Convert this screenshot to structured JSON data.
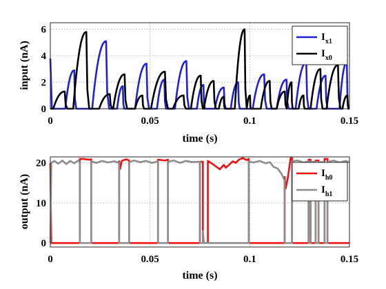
{
  "chart_data": [
    {
      "type": "line",
      "xlabel": "time (s)",
      "ylabel": "input (nA)",
      "xlim": [
        0,
        0.15
      ],
      "ylim": [
        0,
        6.5
      ],
      "xticks": [
        0,
        0.05,
        0.1,
        0.15
      ],
      "xtick_labels": [
        "0",
        "0.05",
        "0.1",
        "0.15"
      ],
      "yticks": [
        0,
        2,
        4,
        6
      ],
      "ytick_labels": [
        "0",
        "2",
        "4",
        "6"
      ],
      "grid": true,
      "legend_position": "top-right",
      "series": [
        {
          "name": "I",
          "sub": "x1",
          "color": "#1f1fd6",
          "pulses": [
            {
              "start": 0.0,
              "end": 0.0008,
              "peak": 3.8
            },
            {
              "start": 0.0075,
              "end": 0.013,
              "peak": 2.9
            },
            {
              "start": 0.021,
              "end": 0.0295,
              "peak": 5.1
            },
            {
              "start": 0.0335,
              "end": 0.037,
              "peak": 1.7
            },
            {
              "start": 0.0425,
              "end": 0.0495,
              "peak": 3.4
            },
            {
              "start": 0.0535,
              "end": 0.058,
              "peak": 2.2
            },
            {
              "start": 0.0625,
              "end": 0.0695,
              "peak": 3.6
            },
            {
              "start": 0.0735,
              "end": 0.0775,
              "peak": 1.8
            },
            {
              "start": 0.0825,
              "end": 0.088,
              "peak": 1.6
            },
            {
              "start": 0.0905,
              "end": 0.095,
              "peak": 2.0
            },
            {
              "start": 0.1015,
              "end": 0.1085,
              "peak": 2.6
            },
            {
              "start": 0.1135,
              "end": 0.1195,
              "peak": 2.2
            },
            {
              "start": 0.123,
              "end": 0.1295,
              "peak": 3.5
            },
            {
              "start": 0.1335,
              "end": 0.139,
              "peak": 2.5
            },
            {
              "start": 0.145,
              "end": 0.1495,
              "peak": 3.5
            }
          ]
        },
        {
          "name": "I",
          "sub": "x0",
          "color": "#000000",
          "pulses": [
            {
              "start": 0.0015,
              "end": 0.0085,
              "peak": 1.3
            },
            {
              "start": 0.0115,
              "end": 0.0195,
              "peak": 5.8
            },
            {
              "start": 0.0245,
              "end": 0.031,
              "peak": 1.1
            },
            {
              "start": 0.0315,
              "end": 0.0385,
              "peak": 2.6
            },
            {
              "start": 0.0425,
              "end": 0.047,
              "peak": 1.0
            },
            {
              "start": 0.0505,
              "end": 0.059,
              "peak": 2.8
            },
            {
              "start": 0.0615,
              "end": 0.068,
              "peak": 1.0
            },
            {
              "start": 0.0705,
              "end": 0.0765,
              "peak": 2.5
            },
            {
              "start": 0.077,
              "end": 0.083,
              "peak": 2.1
            },
            {
              "start": 0.0845,
              "end": 0.0875,
              "peak": 0.9
            },
            {
              "start": 0.0925,
              "end": 0.0985,
              "peak": 6.0
            },
            {
              "start": 0.0985,
              "end": 0.1005,
              "peak": 1.0
            },
            {
              "start": 0.1055,
              "end": 0.111,
              "peak": 2.1
            },
            {
              "start": 0.1135,
              "end": 0.1185,
              "peak": 1.3
            },
            {
              "start": 0.1185,
              "end": 0.1215,
              "peak": 2.0
            },
            {
              "start": 0.1245,
              "end": 0.1275,
              "peak": 1.0
            },
            {
              "start": 0.1305,
              "end": 0.1365,
              "peak": 3.0
            },
            {
              "start": 0.1385,
              "end": 0.1455,
              "peak": 3.3
            },
            {
              "start": 0.1465,
              "end": 0.1495,
              "peak": 1.0
            }
          ]
        }
      ]
    },
    {
      "type": "line",
      "xlabel": "time (s)",
      "ylabel": "output (nA)",
      "xlim": [
        0,
        0.15
      ],
      "ylim": [
        -1,
        21.5
      ],
      "xticks": [
        0,
        0.05,
        0.1,
        0.15
      ],
      "xtick_labels": [
        "0",
        "0.05",
        "0.1",
        "0.15"
      ],
      "yticks": [
        0,
        10,
        20
      ],
      "ytick_labels": [
        "0",
        "10",
        "20"
      ],
      "grid": true,
      "legend_position": "top-right",
      "series": [
        {
          "name": "I",
          "sub": "h0",
          "color": "#ee1111",
          "points": [
            [
              0,
              20
            ],
            [
              0.0005,
              0
            ],
            [
              0.0148,
              0
            ],
            [
              0.0148,
              21
            ],
            [
              0.0165,
              21
            ],
            [
              0.0195,
              20.8
            ],
            [
              0.0205,
              20.9
            ],
            [
              0.0205,
              0
            ],
            [
              0.0345,
              0
            ],
            [
              0.0345,
              20.4
            ],
            [
              0.035,
              18.5
            ],
            [
              0.0358,
              20.5
            ],
            [
              0.038,
              20.9
            ],
            [
              0.0395,
              20.6
            ],
            [
              0.0395,
              0
            ],
            [
              0.054,
              0
            ],
            [
              0.054,
              20.8
            ],
            [
              0.0575,
              20.6
            ],
            [
              0.059,
              20.8
            ],
            [
              0.059,
              0
            ],
            [
              0.075,
              0
            ],
            [
              0.075,
              20.3
            ],
            [
              0.0765,
              20.3
            ],
            [
              0.0765,
              0
            ],
            [
              0.079,
              0
            ],
            [
              0.079,
              20.5
            ],
            [
              0.082,
              19.5
            ],
            [
              0.085,
              18.4
            ],
            [
              0.087,
              19.5
            ],
            [
              0.088,
              18.8
            ],
            [
              0.09,
              19.7
            ],
            [
              0.0915,
              20.4
            ],
            [
              0.093,
              20.0
            ],
            [
              0.0945,
              20.8
            ],
            [
              0.0965,
              21.2
            ],
            [
              0.0985,
              20.7
            ],
            [
              0.0995,
              21.0
            ],
            [
              0.0995,
              0
            ],
            [
              0.1175,
              0
            ],
            [
              0.1175,
              16.5
            ],
            [
              0.118,
              13.6
            ],
            [
              0.119,
              16.0
            ],
            [
              0.1205,
              21.2
            ],
            [
              0.1212,
              21.2
            ],
            [
              0.1212,
              0
            ],
            [
              0.1295,
              0
            ],
            [
              0.1295,
              20.8
            ],
            [
              0.1305,
              20.8
            ],
            [
              0.1305,
              0
            ],
            [
              0.133,
              0
            ],
            [
              0.133,
              20.6
            ],
            [
              0.1345,
              20.6
            ],
            [
              0.1345,
              0
            ],
            [
              0.1375,
              0
            ],
            [
              0.1375,
              21
            ],
            [
              0.139,
              21
            ],
            [
              0.139,
              0
            ],
            [
              0.15,
              0
            ]
          ]
        },
        {
          "name": "I",
          "sub": "h1",
          "color": "#8c8c8c",
          "points": [
            [
              0,
              0
            ],
            [
              0.0005,
              20.0
            ],
            [
              0.002,
              20.5
            ],
            [
              0.004,
              19.8
            ],
            [
              0.006,
              20.6
            ],
            [
              0.008,
              19.7
            ],
            [
              0.01,
              20.5
            ],
            [
              0.012,
              19.9
            ],
            [
              0.014,
              20.6
            ],
            [
              0.0148,
              20.2
            ],
            [
              0.0148,
              0
            ],
            [
              0.0205,
              0
            ],
            [
              0.0205,
              20.4
            ],
            [
              0.023,
              20.0
            ],
            [
              0.026,
              20.5
            ],
            [
              0.029,
              20.1
            ],
            [
              0.032,
              20.4
            ],
            [
              0.0345,
              20.0
            ],
            [
              0.0345,
              0
            ],
            [
              0.0395,
              0
            ],
            [
              0.0395,
              20.2
            ],
            [
              0.042,
              20.6
            ],
            [
              0.045,
              20.2
            ],
            [
              0.048,
              20.5
            ],
            [
              0.051,
              20.0
            ],
            [
              0.054,
              20.4
            ],
            [
              0.054,
              0
            ],
            [
              0.059,
              0
            ],
            [
              0.059,
              20.3
            ],
            [
              0.062,
              20.6
            ],
            [
              0.065,
              20.0
            ],
            [
              0.068,
              20.5
            ],
            [
              0.071,
              20.2
            ],
            [
              0.075,
              20.3
            ],
            [
              0.075,
              0
            ],
            [
              0.0765,
              0
            ],
            [
              0.0765,
              3.0
            ],
            [
              0.077,
              0
            ],
            [
              0.0995,
              0
            ],
            [
              0.0995,
              20.3
            ],
            [
              0.102,
              20.1
            ],
            [
              0.105,
              20.5
            ],
            [
              0.108,
              19.9
            ],
            [
              0.11,
              20.2
            ],
            [
              0.112,
              19.0
            ],
            [
              0.114,
              18.6
            ],
            [
              0.116,
              17.2
            ],
            [
              0.1175,
              15.6
            ],
            [
              0.1175,
              0
            ],
            [
              0.1212,
              0
            ],
            [
              0.1212,
              20.4
            ],
            [
              0.124,
              20.6
            ],
            [
              0.127,
              20.1
            ],
            [
              0.1295,
              20.4
            ],
            [
              0.1295,
              0
            ],
            [
              0.1305,
              0
            ],
            [
              0.1305,
              20.3
            ],
            [
              0.133,
              20.3
            ],
            [
              0.133,
              0
            ],
            [
              0.1345,
              0
            ],
            [
              0.1345,
              20.2
            ],
            [
              0.1375,
              20.2
            ],
            [
              0.1375,
              0
            ],
            [
              0.139,
              0
            ],
            [
              0.139,
              20.2
            ],
            [
              0.142,
              20.6
            ],
            [
              0.145,
              20.1
            ],
            [
              0.148,
              20.5
            ],
            [
              0.15,
              20.2
            ]
          ]
        }
      ]
    }
  ]
}
